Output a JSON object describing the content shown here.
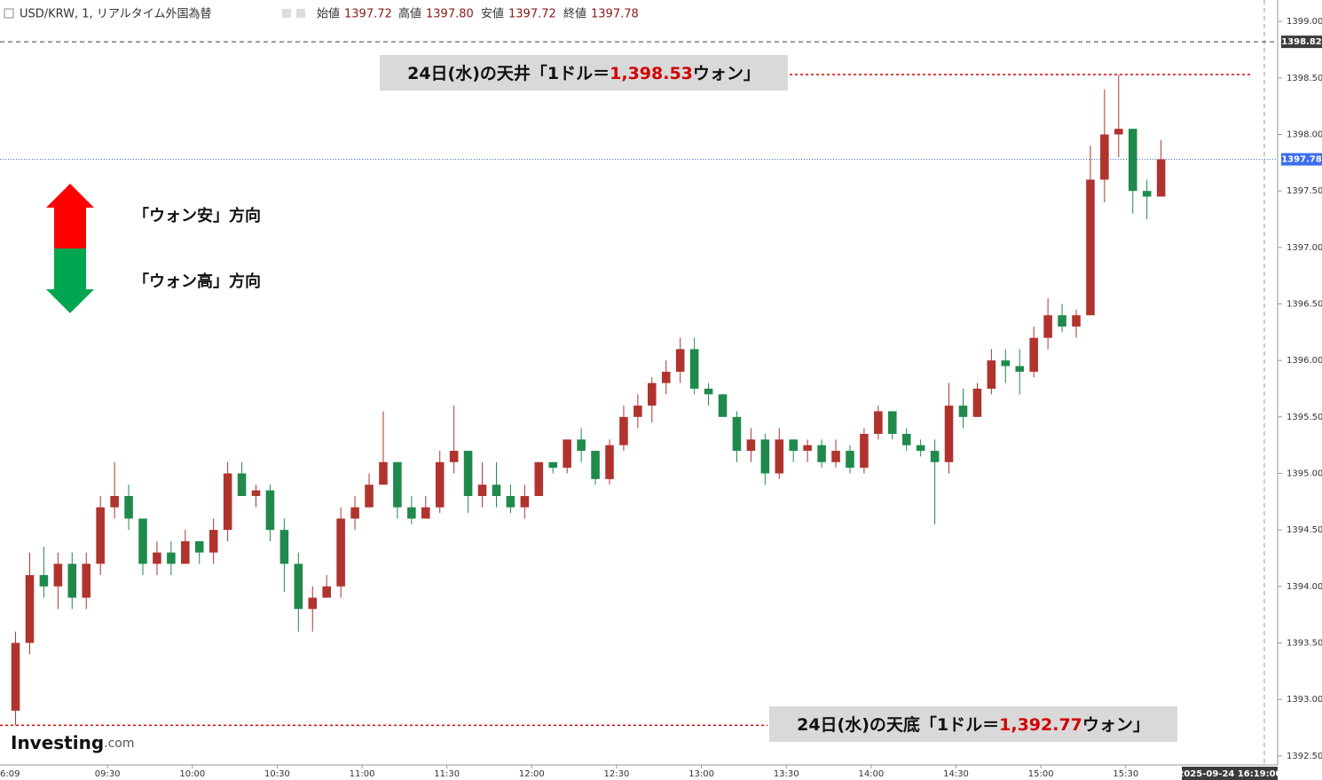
{
  "header": {
    "symbol": "USD/KRW, 1, リアルタイム外国為替",
    "open_label": "始値",
    "open": "1397.72",
    "high_label": "高値",
    "high": "1397.80",
    "low_label": "安値",
    "low": "1397.72",
    "close_label": "終値",
    "close": "1397.78"
  },
  "chart_data": {
    "type": "candlestick",
    "up_color": "#b0332e",
    "down_color": "#1f8a4c",
    "xlim": [
      "08:52",
      "16:19"
    ],
    "xticks": [
      "09:30",
      "10:00",
      "10:30",
      "11:00",
      "11:30",
      "12:00",
      "12:30",
      "13:00",
      "13:30",
      "14:00",
      "14:30",
      "15:00",
      "15:30"
    ],
    "x_start_label": "6:09",
    "cursor_label": "2025-09-24 16:19:00",
    "ylim": [
      1392.42,
      1399.19
    ],
    "yticks": [
      {
        "value": 1392.5,
        "label": "1392.50"
      },
      {
        "value": 1393,
        "label": "1393.00"
      },
      {
        "value": 1393.5,
        "label": "1393.50"
      },
      {
        "value": 1394,
        "label": "1394.00"
      },
      {
        "value": 1394.5,
        "label": "1394.50"
      },
      {
        "value": 1395,
        "label": "1395.00"
      },
      {
        "value": 1395.5,
        "label": "1395.50"
      },
      {
        "value": 1396,
        "label": "1396.00"
      },
      {
        "value": 1396.5,
        "label": "1396.50"
      },
      {
        "value": 1397,
        "label": "1397.00"
      },
      {
        "value": 1397.5,
        "label": "1397.50"
      },
      {
        "value": 1398,
        "label": "1398.00"
      },
      {
        "value": 1398.5,
        "label": "1398.50"
      },
      {
        "value": 1399,
        "label": "1399.00"
      }
    ],
    "price_markers": [
      {
        "value": 1398.82,
        "color": "#3c3c3c"
      },
      {
        "value": 1397.78,
        "color": "#3d6ef0"
      }
    ],
    "annotations": [
      {
        "prefix": "24日(水)の天井「1ドル＝",
        "value": 1398.53,
        "value_label": "1,398.53",
        "suffix": "ウォン」"
      },
      {
        "prefix": "24日(水)の天底「1ドル＝",
        "value": 1392.77,
        "value_label": "1,392.77",
        "suffix": "ウォン」"
      }
    ],
    "direction_labels": [
      "「ウォン安」方向",
      "「ウォン高」方向"
    ],
    "brand": "Investing",
    "brand_suffix": ".com",
    "candles": [
      {
        "time": "08:55",
        "open": 1392.9,
        "high": 1393.6,
        "low": 1392.77,
        "close": 1393.5
      },
      {
        "time": "09:00",
        "open": 1393.5,
        "high": 1394.3,
        "low": 1393.4,
        "close": 1394.1
      },
      {
        "time": "09:05",
        "open": 1394.1,
        "high": 1394.35,
        "low": 1393.9,
        "close": 1394.0
      },
      {
        "time": "09:10",
        "open": 1394.0,
        "high": 1394.3,
        "low": 1393.8,
        "close": 1394.2
      },
      {
        "time": "09:15",
        "open": 1394.2,
        "high": 1394.3,
        "low": 1393.8,
        "close": 1393.9
      },
      {
        "time": "09:20",
        "open": 1393.9,
        "high": 1394.3,
        "low": 1393.8,
        "close": 1394.2
      },
      {
        "time": "09:25",
        "open": 1394.2,
        "high": 1394.8,
        "low": 1394.1,
        "close": 1394.7
      },
      {
        "time": "09:30",
        "open": 1394.7,
        "high": 1395.1,
        "low": 1394.6,
        "close": 1394.8
      },
      {
        "time": "09:35",
        "open": 1394.8,
        "high": 1394.9,
        "low": 1394.5,
        "close": 1394.6
      },
      {
        "time": "09:40",
        "open": 1394.6,
        "high": 1394.6,
        "low": 1394.1,
        "close": 1394.2
      },
      {
        "time": "09:45",
        "open": 1394.2,
        "high": 1394.4,
        "low": 1394.1,
        "close": 1394.3
      },
      {
        "time": "09:50",
        "open": 1394.3,
        "high": 1394.4,
        "low": 1394.1,
        "close": 1394.2
      },
      {
        "time": "09:55",
        "open": 1394.2,
        "high": 1394.5,
        "low": 1394.2,
        "close": 1394.4
      },
      {
        "time": "10:00",
        "open": 1394.4,
        "high": 1394.4,
        "low": 1394.2,
        "close": 1394.3
      },
      {
        "time": "10:05",
        "open": 1394.3,
        "high": 1394.6,
        "low": 1394.2,
        "close": 1394.5
      },
      {
        "time": "10:10",
        "open": 1394.5,
        "high": 1395.1,
        "low": 1394.4,
        "close": 1395.0
      },
      {
        "time": "10:15",
        "open": 1395.0,
        "high": 1395.1,
        "low": 1394.8,
        "close": 1394.8
      },
      {
        "time": "10:20",
        "open": 1394.8,
        "high": 1394.9,
        "low": 1394.7,
        "close": 1394.85
      },
      {
        "time": "10:25",
        "open": 1394.85,
        "high": 1394.9,
        "low": 1394.4,
        "close": 1394.5
      },
      {
        "time": "10:30",
        "open": 1394.5,
        "high": 1394.6,
        "low": 1393.95,
        "close": 1394.2
      },
      {
        "time": "10:35",
        "open": 1394.2,
        "high": 1394.3,
        "low": 1393.6,
        "close": 1393.8
      },
      {
        "time": "10:40",
        "open": 1393.8,
        "high": 1394.0,
        "low": 1393.6,
        "close": 1393.9
      },
      {
        "time": "10:45",
        "open": 1393.9,
        "high": 1394.1,
        "low": 1393.9,
        "close": 1394.0
      },
      {
        "time": "10:50",
        "open": 1394.0,
        "high": 1394.7,
        "low": 1393.9,
        "close": 1394.6
      },
      {
        "time": "10:55",
        "open": 1394.6,
        "high": 1394.8,
        "low": 1394.5,
        "close": 1394.7
      },
      {
        "time": "11:00",
        "open": 1394.7,
        "high": 1395.0,
        "low": 1394.7,
        "close": 1394.9
      },
      {
        "time": "11:05",
        "open": 1394.9,
        "high": 1395.55,
        "low": 1394.9,
        "close": 1395.1
      },
      {
        "time": "11:10",
        "open": 1395.1,
        "high": 1395.1,
        "low": 1394.6,
        "close": 1394.7
      },
      {
        "time": "11:15",
        "open": 1394.7,
        "high": 1394.8,
        "low": 1394.55,
        "close": 1394.6
      },
      {
        "time": "11:20",
        "open": 1394.6,
        "high": 1394.8,
        "low": 1394.6,
        "close": 1394.7
      },
      {
        "time": "11:25",
        "open": 1394.7,
        "high": 1395.2,
        "low": 1394.65,
        "close": 1395.1
      },
      {
        "time": "11:30",
        "open": 1395.1,
        "high": 1395.6,
        "low": 1395.0,
        "close": 1395.2
      },
      {
        "time": "11:35",
        "open": 1395.2,
        "high": 1395.2,
        "low": 1394.65,
        "close": 1394.8
      },
      {
        "time": "11:40",
        "open": 1394.8,
        "high": 1395.1,
        "low": 1394.7,
        "close": 1394.9
      },
      {
        "time": "11:45",
        "open": 1394.9,
        "high": 1395.1,
        "low": 1394.7,
        "close": 1394.8
      },
      {
        "time": "11:50",
        "open": 1394.8,
        "high": 1394.9,
        "low": 1394.65,
        "close": 1394.7
      },
      {
        "time": "11:55",
        "open": 1394.7,
        "high": 1394.9,
        "low": 1394.6,
        "close": 1394.8
      },
      {
        "time": "12:00",
        "open": 1394.8,
        "high": 1395.1,
        "low": 1394.8,
        "close": 1395.1
      },
      {
        "time": "12:05",
        "open": 1395.1,
        "high": 1395.1,
        "low": 1395.0,
        "close": 1395.05
      },
      {
        "time": "12:10",
        "open": 1395.05,
        "high": 1395.3,
        "low": 1395.0,
        "close": 1395.3
      },
      {
        "time": "12:15",
        "open": 1395.3,
        "high": 1395.4,
        "low": 1395.1,
        "close": 1395.2
      },
      {
        "time": "12:20",
        "open": 1395.2,
        "high": 1395.2,
        "low": 1394.9,
        "close": 1394.95
      },
      {
        "time": "12:25",
        "open": 1394.95,
        "high": 1395.3,
        "low": 1394.9,
        "close": 1395.25
      },
      {
        "time": "12:30",
        "open": 1395.25,
        "high": 1395.6,
        "low": 1395.2,
        "close": 1395.5
      },
      {
        "time": "12:35",
        "open": 1395.5,
        "high": 1395.7,
        "low": 1395.4,
        "close": 1395.6
      },
      {
        "time": "12:40",
        "open": 1395.6,
        "high": 1395.85,
        "low": 1395.45,
        "close": 1395.8
      },
      {
        "time": "12:45",
        "open": 1395.8,
        "high": 1396.0,
        "low": 1395.7,
        "close": 1395.9
      },
      {
        "time": "12:50",
        "open": 1395.9,
        "high": 1396.2,
        "low": 1395.8,
        "close": 1396.1
      },
      {
        "time": "12:55",
        "open": 1396.1,
        "high": 1396.2,
        "low": 1395.7,
        "close": 1395.75
      },
      {
        "time": "13:00",
        "open": 1395.75,
        "high": 1395.8,
        "low": 1395.6,
        "close": 1395.7
      },
      {
        "time": "13:05",
        "open": 1395.7,
        "high": 1395.7,
        "low": 1395.5,
        "close": 1395.5
      },
      {
        "time": "13:10",
        "open": 1395.5,
        "high": 1395.55,
        "low": 1395.1,
        "close": 1395.2
      },
      {
        "time": "13:15",
        "open": 1395.2,
        "high": 1395.4,
        "low": 1395.1,
        "close": 1395.3
      },
      {
        "time": "13:20",
        "open": 1395.3,
        "high": 1395.35,
        "low": 1394.9,
        "close": 1395.0
      },
      {
        "time": "13:25",
        "open": 1395.0,
        "high": 1395.4,
        "low": 1394.95,
        "close": 1395.3
      },
      {
        "time": "13:30",
        "open": 1395.3,
        "high": 1395.3,
        "low": 1395.1,
        "close": 1395.2
      },
      {
        "time": "13:35",
        "open": 1395.2,
        "high": 1395.3,
        "low": 1395.1,
        "close": 1395.25
      },
      {
        "time": "13:40",
        "open": 1395.25,
        "high": 1395.3,
        "low": 1395.05,
        "close": 1395.1
      },
      {
        "time": "13:45",
        "open": 1395.1,
        "high": 1395.3,
        "low": 1395.05,
        "close": 1395.2
      },
      {
        "time": "13:50",
        "open": 1395.2,
        "high": 1395.25,
        "low": 1395.0,
        "close": 1395.05
      },
      {
        "time": "13:55",
        "open": 1395.05,
        "high": 1395.4,
        "low": 1395.0,
        "close": 1395.35
      },
      {
        "time": "14:00",
        "open": 1395.35,
        "high": 1395.6,
        "low": 1395.3,
        "close": 1395.55
      },
      {
        "time": "14:05",
        "open": 1395.55,
        "high": 1395.55,
        "low": 1395.3,
        "close": 1395.35
      },
      {
        "time": "14:10",
        "open": 1395.35,
        "high": 1395.4,
        "low": 1395.2,
        "close": 1395.25
      },
      {
        "time": "14:15",
        "open": 1395.25,
        "high": 1395.3,
        "low": 1395.15,
        "close": 1395.2
      },
      {
        "time": "14:20",
        "open": 1395.2,
        "high": 1395.3,
        "low": 1394.55,
        "close": 1395.1
      },
      {
        "time": "14:25",
        "open": 1395.1,
        "high": 1395.8,
        "low": 1395.0,
        "close": 1395.6
      },
      {
        "time": "14:30",
        "open": 1395.6,
        "high": 1395.75,
        "low": 1395.4,
        "close": 1395.5
      },
      {
        "time": "14:35",
        "open": 1395.5,
        "high": 1395.8,
        "low": 1395.5,
        "close": 1395.75
      },
      {
        "time": "14:40",
        "open": 1395.75,
        "high": 1396.1,
        "low": 1395.7,
        "close": 1396.0
      },
      {
        "time": "14:45",
        "open": 1396.0,
        "high": 1396.1,
        "low": 1395.8,
        "close": 1395.95
      },
      {
        "time": "14:50",
        "open": 1395.95,
        "high": 1396.1,
        "low": 1395.7,
        "close": 1395.9
      },
      {
        "time": "14:55",
        "open": 1395.9,
        "high": 1396.3,
        "low": 1395.85,
        "close": 1396.2
      },
      {
        "time": "15:00",
        "open": 1396.2,
        "high": 1396.55,
        "low": 1396.1,
        "close": 1396.4
      },
      {
        "time": "15:05",
        "open": 1396.4,
        "high": 1396.5,
        "low": 1396.25,
        "close": 1396.3
      },
      {
        "time": "15:10",
        "open": 1396.3,
        "high": 1396.45,
        "low": 1396.2,
        "close": 1396.4
      },
      {
        "time": "15:15",
        "open": 1396.4,
        "high": 1397.9,
        "low": 1396.4,
        "close": 1397.6
      },
      {
        "time": "15:20",
        "open": 1397.6,
        "high": 1398.4,
        "low": 1397.4,
        "close": 1398.0
      },
      {
        "time": "15:25",
        "open": 1398.0,
        "high": 1398.53,
        "low": 1397.8,
        "close": 1398.05
      },
      {
        "time": "15:30",
        "open": 1398.05,
        "high": 1398.05,
        "low": 1397.3,
        "close": 1397.5
      },
      {
        "time": "15:35",
        "open": 1397.5,
        "high": 1397.6,
        "low": 1397.25,
        "close": 1397.45
      },
      {
        "time": "15:40",
        "open": 1397.45,
        "high": 1397.95,
        "low": 1397.45,
        "close": 1397.78
      }
    ]
  }
}
